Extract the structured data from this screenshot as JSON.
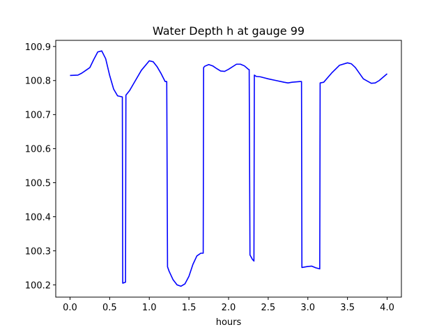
{
  "chart_data": {
    "type": "line",
    "title": "Water Depth h at gauge 99",
    "xlabel": "hours",
    "ylabel": "",
    "xlim": [
      -0.18,
      4.18
    ],
    "ylim": [
      100.164,
      100.918
    ],
    "xticks": [
      0.0,
      0.5,
      1.0,
      1.5,
      2.0,
      2.5,
      3.0,
      3.5,
      4.0
    ],
    "xtick_labels": [
      "0.0",
      "0.5",
      "1.0",
      "1.5",
      "2.0",
      "2.5",
      "3.0",
      "3.5",
      "4.0"
    ],
    "yticks": [
      100.2,
      100.3,
      100.4,
      100.5,
      100.6,
      100.7,
      100.8,
      100.9
    ],
    "ytick_labels": [
      "100.2",
      "100.3",
      "100.4",
      "100.5",
      "100.6",
      "100.7",
      "100.8",
      "100.9"
    ],
    "grid": false,
    "series": [
      {
        "color": "#0000ff",
        "x": [
          0.0,
          0.1,
          0.15,
          0.2,
          0.25,
          0.3,
          0.35,
          0.4,
          0.45,
          0.5,
          0.55,
          0.6,
          0.66,
          0.665,
          0.7,
          0.705,
          0.75,
          0.8,
          0.9,
          1.0,
          1.05,
          1.1,
          1.15,
          1.2,
          1.22,
          1.23,
          1.25,
          1.3,
          1.35,
          1.4,
          1.45,
          1.5,
          1.55,
          1.6,
          1.65,
          1.68,
          1.685,
          1.7,
          1.75,
          1.8,
          1.85,
          1.9,
          1.95,
          2.0,
          2.1,
          2.15,
          2.2,
          2.25,
          2.26,
          2.27,
          2.3,
          2.32,
          2.325,
          2.35,
          2.4,
          2.5,
          2.6,
          2.7,
          2.75,
          2.8,
          2.9,
          2.92,
          2.925,
          3.0,
          3.05,
          3.1,
          3.15,
          3.155,
          3.2,
          3.3,
          3.4,
          3.5,
          3.55,
          3.6,
          3.7,
          3.8,
          3.85,
          3.9,
          4.0
        ],
        "y": [
          100.815,
          100.816,
          100.822,
          100.83,
          100.838,
          100.862,
          100.884,
          100.887,
          100.864,
          100.815,
          100.775,
          100.755,
          100.752,
          100.205,
          100.208,
          100.757,
          100.77,
          100.79,
          100.83,
          100.858,
          100.855,
          100.84,
          100.82,
          100.797,
          100.797,
          100.253,
          100.24,
          100.215,
          100.2,
          100.196,
          100.203,
          100.225,
          100.26,
          100.285,
          100.293,
          100.293,
          100.838,
          100.842,
          100.847,
          100.843,
          100.835,
          100.828,
          100.827,
          100.833,
          100.848,
          100.848,
          100.843,
          100.833,
          100.832,
          100.288,
          100.275,
          100.27,
          100.816,
          100.812,
          100.811,
          100.805,
          100.8,
          100.795,
          100.793,
          100.795,
          100.797,
          100.797,
          100.251,
          100.254,
          100.255,
          100.25,
          100.247,
          100.793,
          100.795,
          100.822,
          100.845,
          100.852,
          100.849,
          100.838,
          100.805,
          100.792,
          100.793,
          100.8,
          100.82
        ]
      }
    ]
  }
}
